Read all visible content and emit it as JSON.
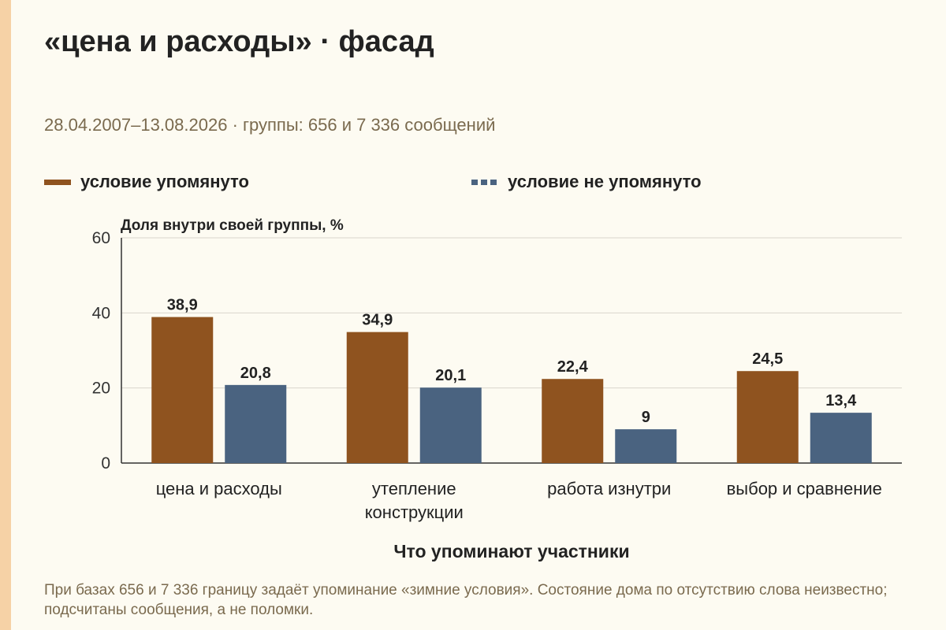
{
  "title": "«цена и расходы» · фасад",
  "subtitle": "28.04.2007–13.08.2026 · группы: 656 и 7 336 сообщений",
  "legend": [
    {
      "label": "условие упомянуто",
      "color": "#8f531f",
      "style": "solid"
    },
    {
      "label": "условие не упомянуто",
      "color": "#4a6380",
      "style": "dashed"
    }
  ],
  "note": "При базах 656 и 7 336 границу задаёт упоминание «зимние условия». Состояние дома по отсутствию слова неизвестно; подсчитаны сообщения, а не поломки.",
  "chart_data": {
    "type": "bar",
    "ylabel": "Доля внутри своей группы, %",
    "xlabel": "Что упоминают участники",
    "ylim": [
      0,
      60
    ],
    "yticks": [
      0,
      20,
      40,
      60
    ],
    "grid": true,
    "legend_position": "top",
    "categories": [
      [
        "цена и расходы"
      ],
      [
        "утепление",
        "конструкции"
      ],
      [
        "работа изнутри"
      ],
      [
        "выбор и сравнение"
      ]
    ],
    "series": [
      {
        "name": "условие упомянуто",
        "color": "#8f531f",
        "values": [
          38.9,
          34.9,
          22.4,
          24.5
        ],
        "labels": [
          "38,9",
          "34,9",
          "22,4",
          "24,5"
        ]
      },
      {
        "name": "условие не упомянуто",
        "color": "#4a6380",
        "values": [
          20.8,
          20.1,
          9,
          13.4
        ],
        "labels": [
          "20,8",
          "20,1",
          "9",
          "13,4"
        ]
      }
    ]
  }
}
